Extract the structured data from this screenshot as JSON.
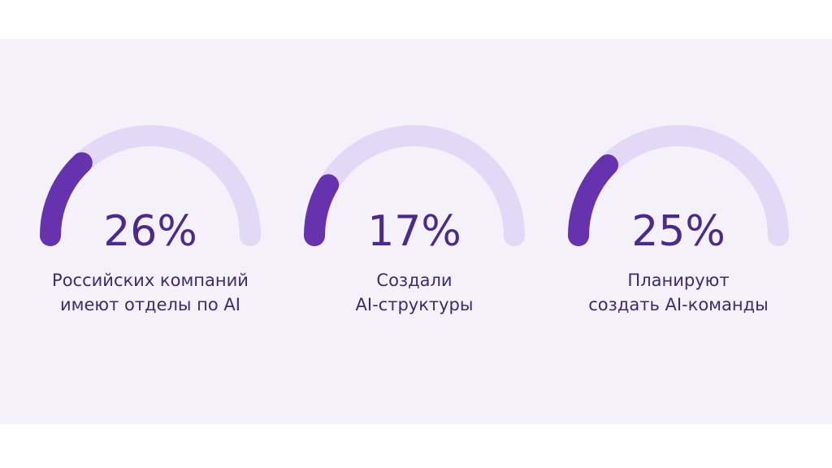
{
  "chart_data": [
    {
      "type": "gauge",
      "values": [
        26
      ],
      "value_labels": [
        "26%"
      ],
      "ylim": [
        0,
        100
      ],
      "color": "#6632ad",
      "track_color": "#e3d8f5",
      "caption": [
        "Российских компаний",
        "имеют отделы по AI"
      ]
    },
    {
      "type": "gauge",
      "values": [
        17
      ],
      "value_labels": [
        "17%"
      ],
      "ylim": [
        0,
        100
      ],
      "color": "#6632ad",
      "track_color": "#e3d8f5",
      "caption": [
        "Создали",
        "AI-структуры"
      ]
    },
    {
      "type": "gauge",
      "values": [
        25
      ],
      "value_labels": [
        "25%"
      ],
      "ylim": [
        0,
        100
      ],
      "color": "#6632ad",
      "track_color": "#e3d8f5",
      "caption": [
        "Планируют",
        "создать AI-команды"
      ]
    }
  ]
}
